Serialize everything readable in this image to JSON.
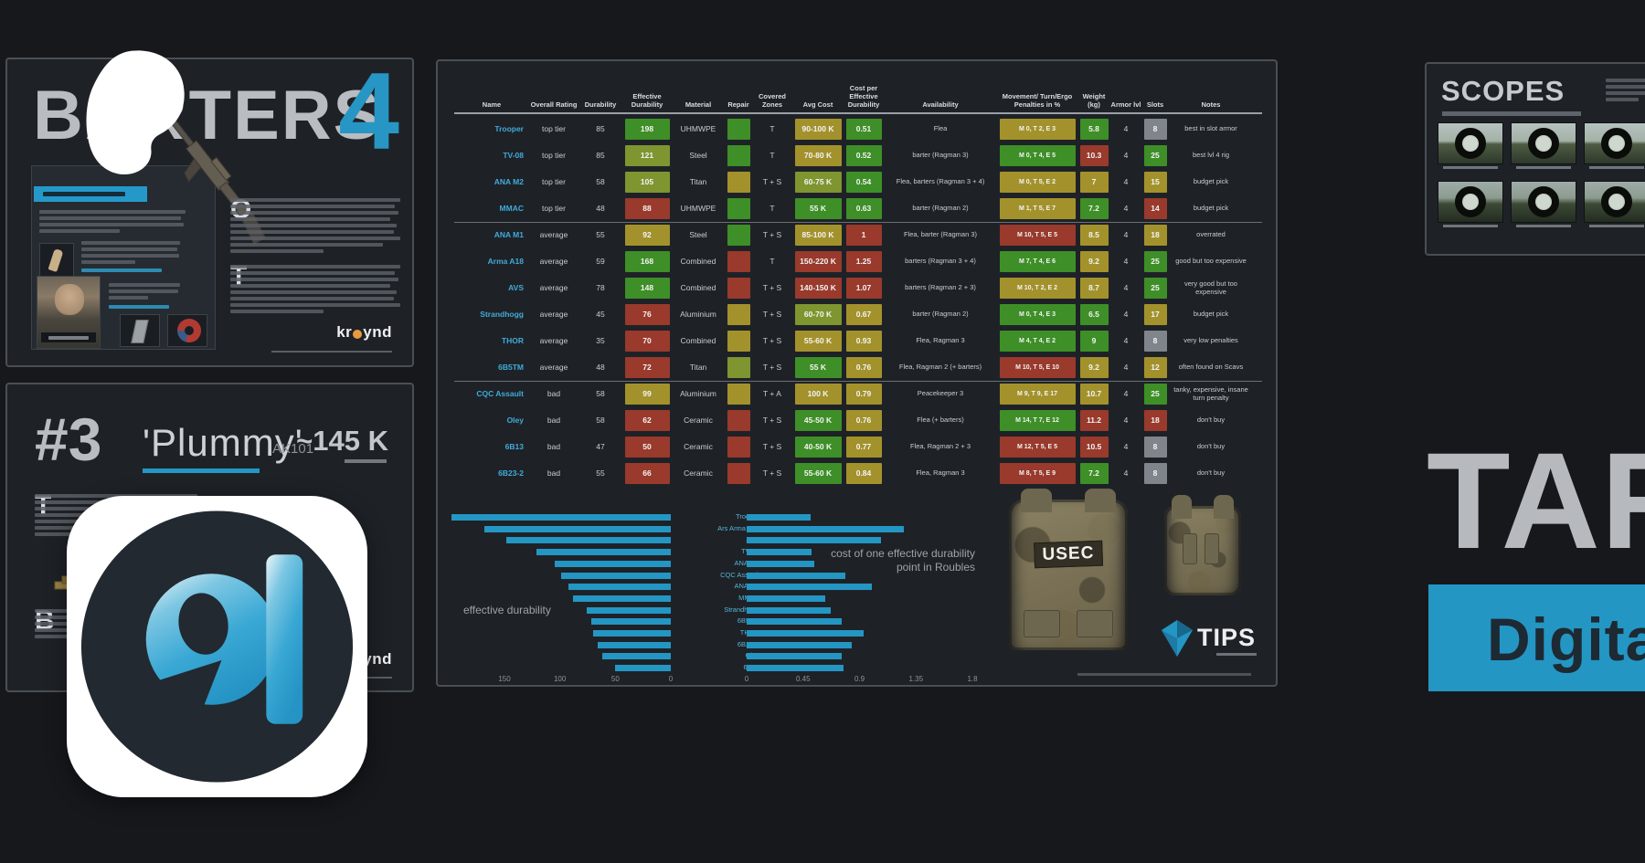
{
  "colors": {
    "accent": "#2496c4",
    "green": "#3e8f27",
    "yellow_green": "#7f9530",
    "yellow": "#a3922c",
    "red": "#993a2c",
    "gray": "#7f858b",
    "bar": "#2496c4"
  },
  "barters": {
    "title": "BARTERS",
    "number": "4",
    "dropcap1": "O",
    "dropcap2": "T",
    "brand_prefix": "kr",
    "brand_suffix": "ynd"
  },
  "plummy": {
    "rank": "#3",
    "title": "'Plummy'",
    "weapon": "AK101",
    "price": "~145 K",
    "dropcap1": "T",
    "dropcap2": "B",
    "brand_prefix": "kr",
    "brand_suffix": "ynd"
  },
  "scopes": {
    "title": "SCOPES"
  },
  "right_side": {
    "big_text": "TARKOV",
    "banner_text": "Digital"
  },
  "overlay_logo": {
    "letter": "a"
  },
  "armor_table": {
    "headers": [
      "Name",
      "Overall Rating",
      "Durability",
      "Effective Durability",
      "Material",
      "Repair",
      "Covered Zones",
      "Avg Cost",
      "Cost per Effective Durability",
      "Availability",
      "Movement/ Turn/Ergo Penalties in %",
      "Weight (kg)",
      "Armor lvl",
      "Slots",
      "Notes"
    ],
    "vest_label": "USEC",
    "tips_label": "TIPS",
    "rows": [
      {
        "name": "Trooper",
        "rating": "top tier",
        "durability": "85",
        "eff_dur": "198",
        "eff_c": "green",
        "material": "UHMWPE",
        "repair_c": "green",
        "zones": "T",
        "avg_cost": "90-100 K",
        "avg_c": "yellow",
        "cost_per": "0.51",
        "cost_c": "green",
        "availability": "Flea",
        "penalties": "M 0, T 2, E 3",
        "pen_c": "yellow",
        "weight": "5.8",
        "weight_c": "green",
        "armor": "4",
        "slots": "8",
        "slots_c": "gray",
        "notes": "best in slot armor"
      },
      {
        "name": "TV-08",
        "rating": "top tier",
        "durability": "85",
        "eff_dur": "121",
        "eff_c": "yellow_green",
        "material": "Steel",
        "repair_c": "green",
        "zones": "T",
        "avg_cost": "70-80 K",
        "avg_c": "yellow",
        "cost_per": "0.52",
        "cost_c": "green",
        "availability": "barter (Ragman 3)",
        "penalties": "M 0, T 4, E 5",
        "pen_c": "green",
        "weight": "10.3",
        "weight_c": "red",
        "armor": "4",
        "slots": "25",
        "slots_c": "green",
        "notes": "best lvl 4 rig"
      },
      {
        "name": "ANA M2",
        "rating": "top tier",
        "durability": "58",
        "eff_dur": "105",
        "eff_c": "yellow_green",
        "material": "Titan",
        "repair_c": "yellow",
        "zones": "T + S",
        "avg_cost": "60-75 K",
        "avg_c": "yellow_green",
        "cost_per": "0.54",
        "cost_c": "green",
        "availability": "Flea, barters (Ragman 3 + 4)",
        "penalties": "M 0, T 5, E 2",
        "pen_c": "yellow",
        "weight": "7",
        "weight_c": "yellow",
        "armor": "4",
        "slots": "15",
        "slots_c": "yellow",
        "notes": "budget pick"
      },
      {
        "name": "MMAC",
        "rating": "top tier",
        "durability": "48",
        "eff_dur": "88",
        "eff_c": "red",
        "material": "UHMWPE",
        "repair_c": "green",
        "zones": "T",
        "avg_cost": "55 K",
        "avg_c": "green",
        "cost_per": "0.63",
        "cost_c": "green",
        "availability": "barter (Ragman 2)",
        "penalties": "M 1, T 5, E 7",
        "pen_c": "yellow",
        "weight": "7.2",
        "weight_c": "green",
        "armor": "4",
        "slots": "14",
        "slots_c": "red",
        "notes": "budget pick"
      },
      {
        "name": "ANA M1",
        "rating": "average",
        "durability": "55",
        "eff_dur": "92",
        "eff_c": "yellow",
        "material": "Steel",
        "repair_c": "green",
        "zones": "T + S",
        "avg_cost": "85-100 K",
        "avg_c": "yellow",
        "cost_per": "1",
        "cost_c": "red",
        "availability": "Flea, barter (Ragman 3)",
        "penalties": "M 10, T 5, E 5",
        "pen_c": "red",
        "weight": "8.5",
        "weight_c": "yellow",
        "armor": "4",
        "slots": "18",
        "slots_c": "yellow",
        "notes": "overrated"
      },
      {
        "name": "Arma A18",
        "rating": "average",
        "durability": "59",
        "eff_dur": "168",
        "eff_c": "green",
        "material": "Combined",
        "repair_c": "red",
        "zones": "T",
        "avg_cost": "150-220 K",
        "avg_c": "red",
        "cost_per": "1.25",
        "cost_c": "red",
        "availability": "barters (Ragman 3 + 4)",
        "penalties": "M 7, T 4, E 6",
        "pen_c": "green",
        "weight": "9.2",
        "weight_c": "yellow",
        "armor": "4",
        "slots": "25",
        "slots_c": "green",
        "notes": "good but too expensive"
      },
      {
        "name": "AVS",
        "rating": "average",
        "durability": "78",
        "eff_dur": "148",
        "eff_c": "green",
        "material": "Combined",
        "repair_c": "red",
        "zones": "T + S",
        "avg_cost": "140-150 K",
        "avg_c": "red",
        "cost_per": "1.07",
        "cost_c": "red",
        "availability": "barters (Ragman 2 + 3)",
        "penalties": "M 10, T 2, E 2",
        "pen_c": "yellow",
        "weight": "8.7",
        "weight_c": "yellow",
        "armor": "4",
        "slots": "25",
        "slots_c": "green",
        "notes": "very good but too expensive"
      },
      {
        "name": "Strandhogg",
        "rating": "average",
        "durability": "45",
        "eff_dur": "76",
        "eff_c": "red",
        "material": "Aluminium",
        "repair_c": "yellow",
        "zones": "T + S",
        "avg_cost": "60-70 K",
        "avg_c": "yellow_green",
        "cost_per": "0.67",
        "cost_c": "yellow",
        "availability": "barter (Ragman 2)",
        "penalties": "M 0, T 4, E 3",
        "pen_c": "green",
        "weight": "6.5",
        "weight_c": "green",
        "armor": "4",
        "slots": "17",
        "slots_c": "yellow",
        "notes": "budget pick"
      },
      {
        "name": "THOR",
        "rating": "average",
        "durability": "35",
        "eff_dur": "70",
        "eff_c": "red",
        "material": "Combined",
        "repair_c": "yellow",
        "zones": "T + S",
        "avg_cost": "55-60 K",
        "avg_c": "yellow",
        "cost_per": "0.93",
        "cost_c": "yellow",
        "availability": "Flea, Ragman 3",
        "penalties": "M 4, T 4, E 2",
        "pen_c": "green",
        "weight": "9",
        "weight_c": "green",
        "armor": "4",
        "slots": "8",
        "slots_c": "gray",
        "notes": "very low penalties"
      },
      {
        "name": "6B5TM",
        "rating": "average",
        "durability": "48",
        "eff_dur": "72",
        "eff_c": "red",
        "material": "Titan",
        "repair_c": "yellow_green",
        "zones": "T + S",
        "avg_cost": "55 K",
        "avg_c": "green",
        "cost_per": "0.76",
        "cost_c": "yellow",
        "availability": "Flea, Ragman 2 (+ barters)",
        "penalties": "M 10, T 5, E 10",
        "pen_c": "red",
        "weight": "9.2",
        "weight_c": "yellow",
        "armor": "4",
        "slots": "12",
        "slots_c": "yellow",
        "notes": "often found on Scavs"
      },
      {
        "name": "CQC Assault",
        "rating": "bad",
        "durability": "58",
        "eff_dur": "99",
        "eff_c": "yellow",
        "material": "Aluminium",
        "repair_c": "yellow",
        "zones": "T + A",
        "avg_cost": "100 K",
        "avg_c": "yellow",
        "cost_per": "0.79",
        "cost_c": "yellow",
        "availability": "Peacekeeper 3",
        "penalties": "M 9, T 9, E 17",
        "pen_c": "yellow",
        "weight": "10.7",
        "weight_c": "yellow",
        "armor": "4",
        "slots": "25",
        "slots_c": "green",
        "notes": "tanky, expensive, insane turn penalty"
      },
      {
        "name": "Oley",
        "rating": "bad",
        "durability": "58",
        "eff_dur": "62",
        "eff_c": "red",
        "material": "Ceramic",
        "repair_c": "red",
        "zones": "T + S",
        "avg_cost": "45-50 K",
        "avg_c": "green",
        "cost_per": "0.76",
        "cost_c": "yellow",
        "availability": "Flea (+ barters)",
        "penalties": "M 14, T 7, E 12",
        "pen_c": "green",
        "weight": "11.2",
        "weight_c": "red",
        "armor": "4",
        "slots": "18",
        "slots_c": "red",
        "notes": "don't buy"
      },
      {
        "name": "6B13",
        "rating": "bad",
        "durability": "47",
        "eff_dur": "50",
        "eff_c": "red",
        "material": "Ceramic",
        "repair_c": "red",
        "zones": "T + S",
        "avg_cost": "40-50 K",
        "avg_c": "green",
        "cost_per": "0.77",
        "cost_c": "yellow",
        "availability": "Flea, Ragman 2 + 3",
        "penalties": "M 12, T 5, E 5",
        "pen_c": "red",
        "weight": "10.5",
        "weight_c": "red",
        "armor": "4",
        "slots": "8",
        "slots_c": "gray",
        "notes": "don't buy"
      },
      {
        "name": "6B23-2",
        "rating": "bad",
        "durability": "55",
        "eff_dur": "66",
        "eff_c": "red",
        "material": "Ceramic",
        "repair_c": "red",
        "zones": "T + S",
        "avg_cost": "55-60 K",
        "avg_c": "green",
        "cost_per": "0.84",
        "cost_c": "yellow",
        "availability": "Flea, Ragman 3",
        "penalties": "M 8, T 5, E 9",
        "pen_c": "red",
        "weight": "7.2",
        "weight_c": "green",
        "armor": "4",
        "slots": "8",
        "slots_c": "gray",
        "notes": "don't buy"
      }
    ]
  },
  "chart_data": {
    "type": "bar",
    "subtype": "horizontal-butterfly",
    "categories": [
      "Trooper",
      "Ars Arma A18",
      "AVS",
      "TV-08",
      "ANA M2",
      "CQC Assault",
      "ANA M1",
      "MMAC",
      "Strandhogg",
      "6B5TM",
      "THOR",
      "6B23-2",
      "Oley",
      "6B13"
    ],
    "series": [
      {
        "name": "effective durability",
        "side": "left",
        "values": [
          198,
          168,
          148,
          121,
          105,
          99,
          92,
          88,
          76,
          72,
          70,
          66,
          62,
          50
        ],
        "axis_ticks": [
          "150",
          "100",
          "50",
          "0"
        ],
        "xlim": [
          0,
          150
        ]
      },
      {
        "name": "cost of one effective durability point in Roubles",
        "side": "right",
        "values": [
          0.51,
          1.25,
          1.07,
          0.52,
          0.54,
          0.79,
          1.0,
          0.63,
          0.67,
          0.76,
          0.93,
          0.84,
          0.76,
          0.77
        ],
        "axis_ticks": [
          "0",
          "0.45",
          "0.9",
          "1.35",
          "1.8"
        ],
        "xlim": [
          0,
          1.8
        ]
      }
    ],
    "left_label": "effective durability",
    "right_annotation": "cost of one effective durability point in Roubles",
    "legend": "none",
    "grid": false
  }
}
